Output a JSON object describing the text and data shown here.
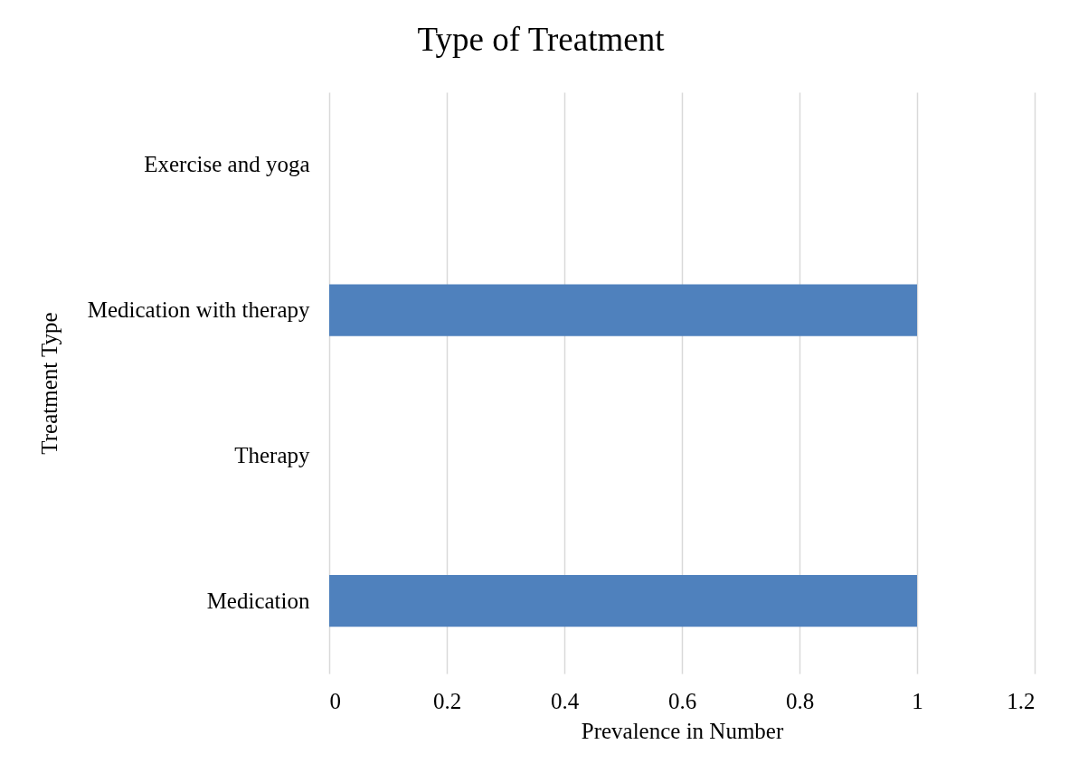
{
  "chart_data": {
    "type": "bar",
    "orientation": "horizontal",
    "title": "Type of Treatment",
    "xlabel": "Prevalence in Number",
    "ylabel": "Treatment Type",
    "categories": [
      "Exercise and yoga",
      "Medication with therapy",
      "Therapy",
      "Medication"
    ],
    "series": [
      {
        "color": "#4f81bd",
        "values": [
          0,
          1,
          0,
          1
        ]
      }
    ],
    "xlim": [
      0,
      1.2
    ],
    "xticks": [
      0,
      0.2,
      0.4,
      0.6,
      0.8,
      1,
      1.2
    ],
    "grid": "x"
  }
}
